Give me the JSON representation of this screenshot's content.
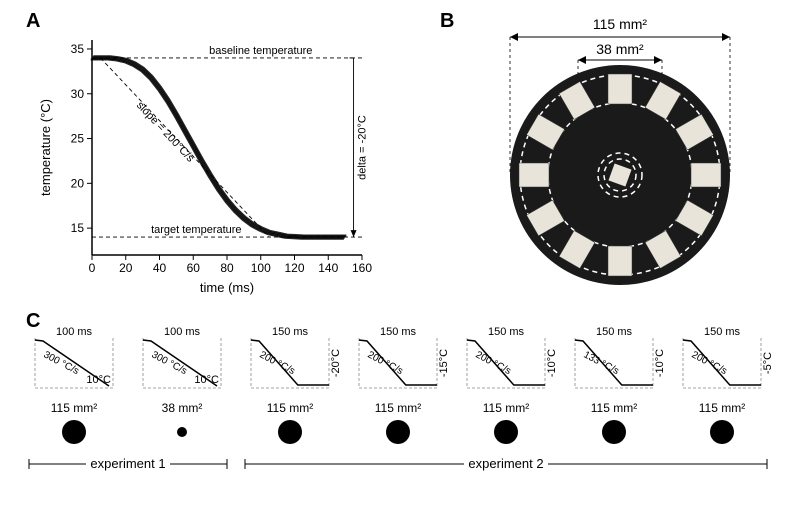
{
  "panelA": {
    "label": "A",
    "chart": {
      "type": "line",
      "xlabel": "time (ms)",
      "ylabel": "temperature (°C)",
      "label_fontsize": 13,
      "xlim": [
        0,
        160
      ],
      "ylim": [
        12,
        36
      ],
      "xtick_step": 20,
      "yticks": [
        15,
        20,
        25,
        30,
        35
      ],
      "curve_color": "#000000",
      "curve_width": 2,
      "background_color": "#ffffff",
      "curve": [
        [
          0,
          34
        ],
        [
          5,
          34
        ],
        [
          10,
          34
        ],
        [
          15,
          33.9
        ],
        [
          20,
          33.7
        ],
        [
          25,
          33.3
        ],
        [
          30,
          32.7
        ],
        [
          35,
          31.8
        ],
        [
          40,
          30.6
        ],
        [
          45,
          29.2
        ],
        [
          50,
          27.6
        ],
        [
          55,
          25.9
        ],
        [
          60,
          24.2
        ],
        [
          65,
          22.5
        ],
        [
          70,
          20.9
        ],
        [
          75,
          19.4
        ],
        [
          80,
          18.1
        ],
        [
          85,
          17.0
        ],
        [
          90,
          16.1
        ],
        [
          95,
          15.4
        ],
        [
          100,
          14.9
        ],
        [
          105,
          14.5
        ],
        [
          110,
          14.3
        ],
        [
          115,
          14.1
        ],
        [
          120,
          14.05
        ],
        [
          125,
          14
        ],
        [
          130,
          14
        ],
        [
          140,
          14
        ],
        [
          150,
          14
        ]
      ],
      "baseline_temp": 34,
      "target_temp": 14,
      "baseline_label": "baseline temperature",
      "target_label": "target temperature",
      "slope_label": "slope = 200°C/s",
      "delta_label": "delta = -20°C",
      "slope_line": [
        [
          5,
          34
        ],
        [
          105,
          14
        ]
      ]
    }
  },
  "panelB": {
    "label": "B",
    "outer_label": "115 mm²",
    "inner_label": "38 mm²",
    "disc_color": "#1a1a1a",
    "tile_color": "#e8e4da",
    "dash_color": "#ffffff",
    "n_tiles": 12
  },
  "panelC": {
    "label": "C",
    "items": [
      {
        "duration": "100 ms",
        "slope": "300 °C/s",
        "delta": "10°C",
        "delta_pos": "right-in",
        "area": "115 mm²",
        "dot_r": 12,
        "plateau": false
      },
      {
        "duration": "100 ms",
        "slope": "300 °C/s",
        "delta": "10°C",
        "delta_pos": "right-in",
        "area": "38 mm²",
        "dot_r": 5,
        "plateau": false
      },
      {
        "duration": "150 ms",
        "slope": "200 °C/s",
        "delta": "-20°C",
        "delta_pos": "right-out",
        "area": "115 mm²",
        "dot_r": 12,
        "plateau": true
      },
      {
        "duration": "150 ms",
        "slope": "200 °C/s",
        "delta": "-15°C",
        "delta_pos": "right-out",
        "area": "115 mm²",
        "dot_r": 12,
        "plateau": true
      },
      {
        "duration": "150 ms",
        "slope": "200 °C/s",
        "delta": "-10°C",
        "delta_pos": "right-out",
        "area": "115 mm²",
        "dot_r": 12,
        "plateau": true
      },
      {
        "duration": "150 ms",
        "slope": "133 °C/s",
        "delta": "-10°C",
        "delta_pos": "right-out",
        "area": "115 mm²",
        "dot_r": 12,
        "plateau": true
      },
      {
        "duration": "150 ms",
        "slope": "200 °C/s",
        "delta": "-5°C",
        "delta_pos": "right-out",
        "area": "115 mm²",
        "dot_r": 12,
        "plateau": true
      }
    ],
    "exp1_label": "experiment 1",
    "exp2_label": "experiment 2"
  },
  "colors": {
    "text": "#000000",
    "dash": "#666666"
  }
}
